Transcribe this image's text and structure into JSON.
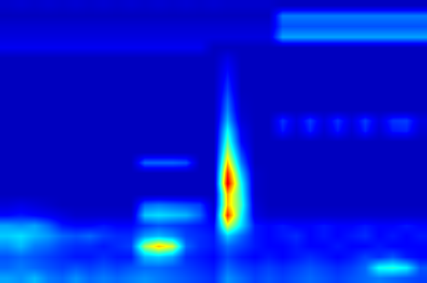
{
  "chart_data": {
    "type": "heatmap",
    "tick_labels": false,
    "zlim": [
      0,
      1
    ],
    "z": [
      [
        0.12,
        0.13,
        0.12,
        0.13,
        0.12,
        0.13,
        0.12,
        0.13,
        0.12,
        0.13,
        0.12,
        0.13,
        0.12,
        0.13,
        0.12,
        0.13,
        0.12,
        0.12,
        0.12,
        0.12,
        0.1,
        0.1,
        0.1,
        0.1,
        0.1,
        0.1,
        0.1,
        0.1,
        0.1,
        0.1,
        0.1
      ],
      [
        0.1,
        0.1,
        0.1,
        0.1,
        0.1,
        0.1,
        0.1,
        0.1,
        0.1,
        0.1,
        0.1,
        0.1,
        0.1,
        0.1,
        0.1,
        0.1,
        0.1,
        0.1,
        0.1,
        0.1,
        0.32,
        0.32,
        0.32,
        0.32,
        0.32,
        0.32,
        0.32,
        0.32,
        0.32,
        0.32,
        0.32
      ],
      [
        0.13,
        0.13,
        0.13,
        0.13,
        0.13,
        0.13,
        0.13,
        0.13,
        0.13,
        0.13,
        0.13,
        0.13,
        0.13,
        0.13,
        0.13,
        0.13,
        0.13,
        0.13,
        0.13,
        0.13,
        0.28,
        0.28,
        0.28,
        0.28,
        0.28,
        0.28,
        0.28,
        0.28,
        0.28,
        0.28,
        0.28
      ],
      [
        0.15,
        0.15,
        0.15,
        0.15,
        0.15,
        0.15,
        0.15,
        0.15,
        0.15,
        0.15,
        0.15,
        0.15,
        0.15,
        0.15,
        0.15,
        0.15,
        0.15,
        0.15,
        0.15,
        0.15,
        0.36,
        0.36,
        0.36,
        0.36,
        0.36,
        0.36,
        0.36,
        0.36,
        0.36,
        0.36,
        0.36
      ],
      [
        0.18,
        0.18,
        0.18,
        0.18,
        0.18,
        0.18,
        0.18,
        0.18,
        0.18,
        0.18,
        0.18,
        0.18,
        0.18,
        0.18,
        0.18,
        0.1,
        0.1,
        0.1,
        0.1,
        0.1,
        0.1,
        0.1,
        0.1,
        0.1,
        0.1,
        0.1,
        0.1,
        0.1,
        0.1,
        0.1,
        0.1
      ],
      [
        0.1,
        0.1,
        0.1,
        0.1,
        0.1,
        0.1,
        0.1,
        0.1,
        0.1,
        0.1,
        0.1,
        0.1,
        0.1,
        0.1,
        0.1,
        0.1,
        0.16,
        0.1,
        0.1,
        0.1,
        0.1,
        0.1,
        0.1,
        0.1,
        0.1,
        0.1,
        0.1,
        0.1,
        0.1,
        0.1,
        0.1
      ],
      [
        0.1,
        0.1,
        0.1,
        0.1,
        0.1,
        0.1,
        0.1,
        0.1,
        0.1,
        0.1,
        0.1,
        0.1,
        0.1,
        0.1,
        0.1,
        0.1,
        0.2,
        0.1,
        0.1,
        0.1,
        0.1,
        0.1,
        0.1,
        0.1,
        0.1,
        0.1,
        0.1,
        0.1,
        0.1,
        0.1,
        0.1
      ],
      [
        0.1,
        0.1,
        0.1,
        0.1,
        0.1,
        0.1,
        0.1,
        0.1,
        0.1,
        0.1,
        0.1,
        0.1,
        0.1,
        0.1,
        0.1,
        0.1,
        0.23,
        0.1,
        0.1,
        0.1,
        0.1,
        0.1,
        0.1,
        0.1,
        0.1,
        0.1,
        0.1,
        0.1,
        0.1,
        0.1,
        0.1
      ],
      [
        0.1,
        0.1,
        0.1,
        0.1,
        0.1,
        0.1,
        0.1,
        0.1,
        0.1,
        0.1,
        0.1,
        0.1,
        0.1,
        0.1,
        0.1,
        0.1,
        0.26,
        0.1,
        0.1,
        0.1,
        0.1,
        0.1,
        0.1,
        0.1,
        0.1,
        0.1,
        0.1,
        0.1,
        0.1,
        0.1,
        0.1
      ],
      [
        0.1,
        0.1,
        0.1,
        0.1,
        0.1,
        0.1,
        0.1,
        0.1,
        0.1,
        0.1,
        0.1,
        0.1,
        0.1,
        0.1,
        0.1,
        0.1,
        0.3,
        0.11,
        0.1,
        0.1,
        0.1,
        0.1,
        0.1,
        0.1,
        0.1,
        0.1,
        0.1,
        0.1,
        0.1,
        0.1,
        0.1
      ],
      [
        0.1,
        0.1,
        0.1,
        0.1,
        0.1,
        0.1,
        0.1,
        0.1,
        0.1,
        0.1,
        0.1,
        0.1,
        0.1,
        0.1,
        0.1,
        0.1,
        0.33,
        0.12,
        0.1,
        0.1,
        0.1,
        0.1,
        0.1,
        0.1,
        0.1,
        0.1,
        0.1,
        0.1,
        0.1,
        0.1,
        0.1
      ],
      [
        0.1,
        0.1,
        0.1,
        0.1,
        0.1,
        0.1,
        0.1,
        0.1,
        0.1,
        0.1,
        0.1,
        0.1,
        0.1,
        0.1,
        0.1,
        0.1,
        0.38,
        0.14,
        0.1,
        0.1,
        0.25,
        0.15,
        0.26,
        0.15,
        0.25,
        0.15,
        0.26,
        0.15,
        0.25,
        0.26,
        0.15
      ],
      [
        0.1,
        0.1,
        0.1,
        0.1,
        0.1,
        0.1,
        0.1,
        0.1,
        0.1,
        0.1,
        0.1,
        0.1,
        0.1,
        0.1,
        0.1,
        0.1,
        0.46,
        0.18,
        0.1,
        0.1,
        0.22,
        0.13,
        0.23,
        0.13,
        0.22,
        0.13,
        0.23,
        0.13,
        0.22,
        0.23,
        0.13
      ],
      [
        0.1,
        0.1,
        0.1,
        0.1,
        0.1,
        0.1,
        0.1,
        0.1,
        0.1,
        0.1,
        0.1,
        0.1,
        0.1,
        0.1,
        0.1,
        0.1,
        0.52,
        0.2,
        0.1,
        0.1,
        0.1,
        0.1,
        0.1,
        0.1,
        0.1,
        0.1,
        0.1,
        0.1,
        0.1,
        0.1,
        0.1
      ],
      [
        0.1,
        0.1,
        0.1,
        0.1,
        0.1,
        0.1,
        0.1,
        0.1,
        0.1,
        0.1,
        0.1,
        0.1,
        0.1,
        0.1,
        0.1,
        0.1,
        0.6,
        0.26,
        0.1,
        0.1,
        0.1,
        0.1,
        0.1,
        0.1,
        0.1,
        0.1,
        0.1,
        0.1,
        0.1,
        0.1,
        0.1
      ],
      [
        0.1,
        0.1,
        0.1,
        0.1,
        0.1,
        0.1,
        0.1,
        0.1,
        0.1,
        0.1,
        0.3,
        0.3,
        0.3,
        0.28,
        0.1,
        0.1,
        0.7,
        0.32,
        0.1,
        0.1,
        0.1,
        0.1,
        0.1,
        0.1,
        0.1,
        0.1,
        0.1,
        0.1,
        0.1,
        0.1,
        0.1
      ],
      [
        0.1,
        0.1,
        0.1,
        0.1,
        0.1,
        0.1,
        0.1,
        0.1,
        0.1,
        0.1,
        0.1,
        0.1,
        0.1,
        0.1,
        0.1,
        0.1,
        0.82,
        0.4,
        0.12,
        0.1,
        0.1,
        0.1,
        0.1,
        0.1,
        0.1,
        0.1,
        0.1,
        0.1,
        0.1,
        0.1,
        0.1
      ],
      [
        0.1,
        0.1,
        0.1,
        0.1,
        0.1,
        0.1,
        0.1,
        0.1,
        0.1,
        0.1,
        0.1,
        0.1,
        0.1,
        0.1,
        0.1,
        0.1,
        0.88,
        0.46,
        0.12,
        0.1,
        0.1,
        0.1,
        0.1,
        0.1,
        0.1,
        0.1,
        0.1,
        0.1,
        0.1,
        0.1,
        0.1
      ],
      [
        0.1,
        0.1,
        0.1,
        0.1,
        0.1,
        0.1,
        0.1,
        0.1,
        0.1,
        0.1,
        0.1,
        0.1,
        0.1,
        0.1,
        0.1,
        0.1,
        0.72,
        0.48,
        0.12,
        0.1,
        0.1,
        0.1,
        0.1,
        0.1,
        0.1,
        0.1,
        0.1,
        0.1,
        0.1,
        0.1,
        0.1
      ],
      [
        0.14,
        0.16,
        0.14,
        0.12,
        0.1,
        0.1,
        0.1,
        0.1,
        0.1,
        0.1,
        0.3,
        0.32,
        0.3,
        0.28,
        0.26,
        0.12,
        0.7,
        0.5,
        0.14,
        0.1,
        0.1,
        0.1,
        0.1,
        0.1,
        0.1,
        0.1,
        0.1,
        0.1,
        0.1,
        0.1,
        0.1
      ],
      [
        0.2,
        0.22,
        0.2,
        0.18,
        0.15,
        0.12,
        0.12,
        0.12,
        0.12,
        0.12,
        0.4,
        0.42,
        0.4,
        0.38,
        0.3,
        0.14,
        0.82,
        0.46,
        0.16,
        0.12,
        0.12,
        0.12,
        0.12,
        0.12,
        0.12,
        0.12,
        0.12,
        0.12,
        0.12,
        0.12,
        0.12
      ],
      [
        0.36,
        0.34,
        0.36,
        0.3,
        0.22,
        0.2,
        0.2,
        0.22,
        0.2,
        0.2,
        0.25,
        0.28,
        0.26,
        0.24,
        0.22,
        0.2,
        0.62,
        0.42,
        0.22,
        0.2,
        0.22,
        0.2,
        0.2,
        0.22,
        0.2,
        0.2,
        0.22,
        0.2,
        0.2,
        0.22,
        0.2
      ],
      [
        0.4,
        0.42,
        0.38,
        0.35,
        0.3,
        0.28,
        0.3,
        0.26,
        0.24,
        0.24,
        0.35,
        0.38,
        0.34,
        0.26,
        0.24,
        0.22,
        0.4,
        0.3,
        0.22,
        0.2,
        0.22,
        0.24,
        0.2,
        0.22,
        0.2,
        0.22,
        0.24,
        0.2,
        0.22,
        0.2,
        0.22
      ],
      [
        0.34,
        0.38,
        0.32,
        0.3,
        0.26,
        0.24,
        0.24,
        0.22,
        0.24,
        0.26,
        0.58,
        0.7,
        0.62,
        0.3,
        0.24,
        0.22,
        0.3,
        0.26,
        0.22,
        0.2,
        0.2,
        0.22,
        0.2,
        0.2,
        0.22,
        0.2,
        0.2,
        0.22,
        0.2,
        0.2,
        0.2
      ],
      [
        0.28,
        0.3,
        0.28,
        0.26,
        0.24,
        0.22,
        0.22,
        0.24,
        0.22,
        0.22,
        0.38,
        0.4,
        0.36,
        0.24,
        0.22,
        0.2,
        0.26,
        0.22,
        0.2,
        0.22,
        0.2,
        0.22,
        0.24,
        0.22,
        0.2,
        0.22,
        0.26,
        0.24,
        0.28,
        0.22,
        0.2
      ],
      [
        0.3,
        0.32,
        0.3,
        0.28,
        0.26,
        0.28,
        0.26,
        0.28,
        0.26,
        0.28,
        0.3,
        0.3,
        0.28,
        0.26,
        0.24,
        0.22,
        0.3,
        0.26,
        0.24,
        0.26,
        0.24,
        0.26,
        0.28,
        0.26,
        0.24,
        0.26,
        0.3,
        0.46,
        0.48,
        0.44,
        0.28
      ],
      [
        0.36,
        0.34,
        0.38,
        0.32,
        0.3,
        0.34,
        0.3,
        0.32,
        0.3,
        0.32,
        0.34,
        0.32,
        0.3,
        0.28,
        0.26,
        0.24,
        0.34,
        0.3,
        0.26,
        0.28,
        0.26,
        0.28,
        0.3,
        0.28,
        0.26,
        0.28,
        0.3,
        0.32,
        0.3,
        0.28,
        0.26
      ]
    ]
  }
}
